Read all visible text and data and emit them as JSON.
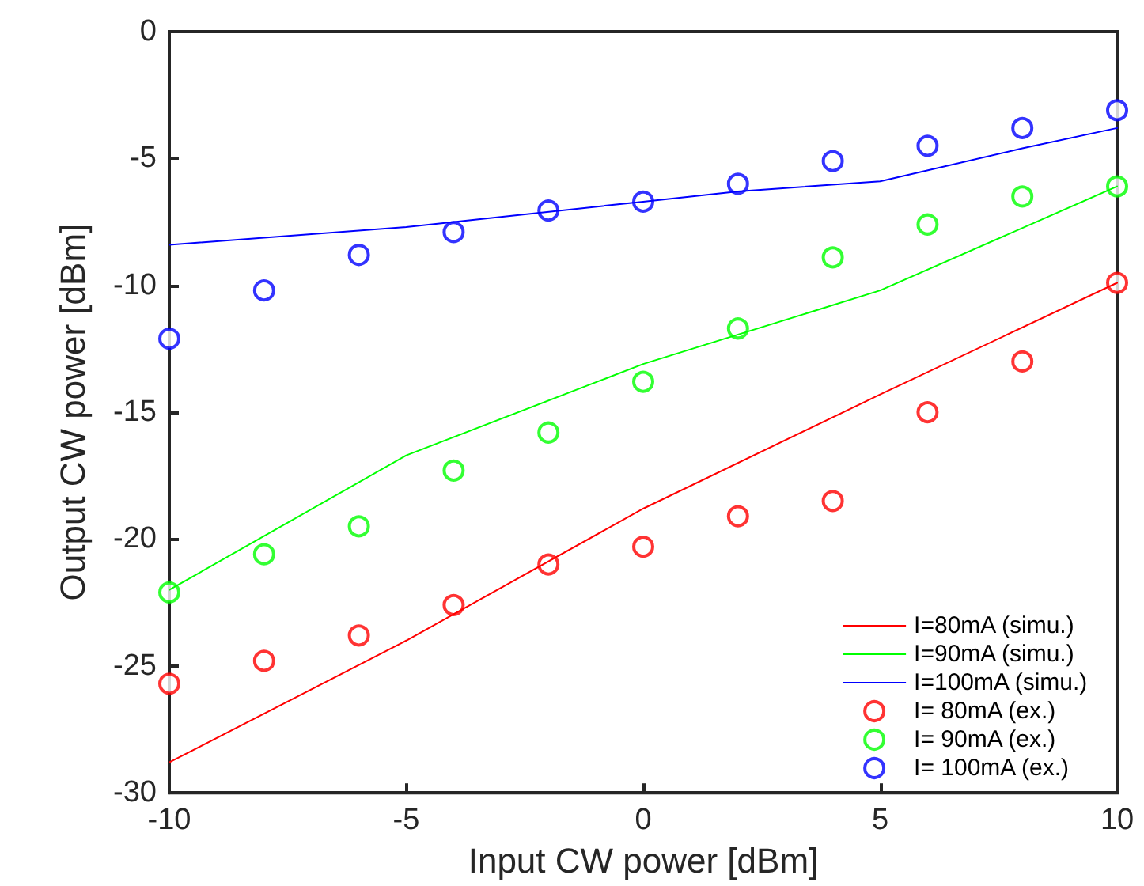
{
  "chart_data": {
    "type": "line",
    "xlabel": "Input CW power [dBm]",
    "ylabel": "Output CW power [dBm]",
    "xlim": [
      -10,
      10
    ],
    "xticks": [
      -10,
      -5,
      0,
      5,
      10
    ],
    "ylim": [
      -30,
      0
    ],
    "yticks": [
      -30,
      -25,
      -20,
      -15,
      -10,
      -5,
      0
    ],
    "grid": false,
    "legend": "bottom right",
    "series": [
      {
        "name": "I=80mA (simu.)",
        "marker": "none",
        "color": "#ff0000",
        "x": [
          -10,
          -5,
          0,
          5,
          10
        ],
        "values": [
          -28.8,
          -24.0,
          -18.8,
          -14.3,
          -9.9
        ]
      },
      {
        "name": "I=90mA (simu.)",
        "marker": "none",
        "color": "#00ff00",
        "x": [
          -10,
          -5,
          0,
          5,
          10
        ],
        "values": [
          -22.0,
          -16.7,
          -13.1,
          -10.2,
          -6.1
        ]
      },
      {
        "name": "I=100mA (simu.)",
        "marker": "none",
        "color": "#0000ff",
        "x": [
          -10,
          -5,
          0,
          2,
          5,
          8,
          10
        ],
        "values": [
          -8.4,
          -7.7,
          -6.7,
          -6.3,
          -5.9,
          -4.6,
          -3.8
        ]
      },
      {
        "name": "I= 80mA (ex.)",
        "type": "scatter",
        "marker": "circle",
        "color": "#ff0000",
        "x": [
          -10,
          -8,
          -6,
          -4,
          -2,
          0,
          2,
          4,
          6,
          8,
          10
        ],
        "values": [
          -25.7,
          -24.8,
          -23.8,
          -22.6,
          -21.0,
          -20.3,
          -19.1,
          -18.5,
          -15.0,
          -13.0,
          -9.9
        ]
      },
      {
        "name": "I= 90mA (ex.)",
        "type": "scatter",
        "marker": "circle",
        "color": "#00ff00",
        "x": [
          -10,
          -8,
          -6,
          -4,
          -2,
          0,
          2,
          4,
          6,
          8,
          10
        ],
        "values": [
          -22.1,
          -20.6,
          -19.5,
          -17.3,
          -15.8,
          -13.8,
          -11.7,
          -8.9,
          -7.6,
          -6.5,
          -6.1
        ]
      },
      {
        "name": "I= 100mA (ex.)",
        "type": "scatter",
        "marker": "circle",
        "color": "#0000ff",
        "x": [
          -10,
          -8,
          -6,
          -4,
          -2,
          0,
          2,
          4,
          6,
          8,
          10
        ],
        "values": [
          -12.1,
          -10.2,
          -8.8,
          -7.9,
          -7.05,
          -6.7,
          -6.0,
          -5.1,
          -4.5,
          -3.8,
          -3.1
        ]
      }
    ]
  }
}
